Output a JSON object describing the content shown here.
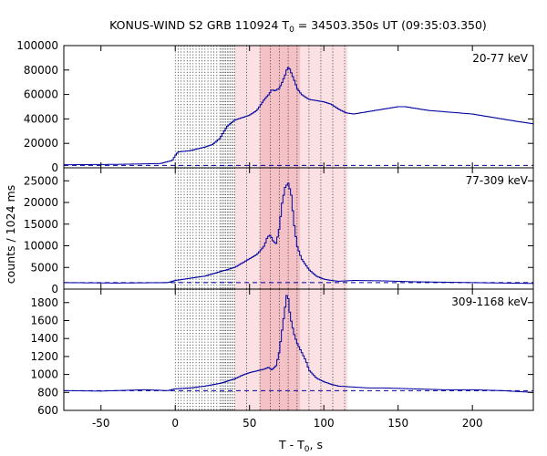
{
  "chart_data": {
    "type": "line",
    "title_prefix": "KONUS-WIND S2 GRB 110924 T",
    "title_sub": "0",
    "title_suffix": " = 34503.350s UT (09:35:03.350)",
    "xlabel_prefix": "T - T",
    "xlabel_sub": "0",
    "xlabel_suffix": ", s",
    "ylabel": "counts / 1024 ms",
    "xlim": [
      -75,
      241
    ],
    "x_ticks": [
      -50,
      0,
      50,
      100,
      150,
      200
    ],
    "grid": false,
    "shaded_intervals": [
      {
        "from": 40,
        "to": 116,
        "shade": "light"
      },
      {
        "from": 57,
        "to": 84,
        "shade": "dark"
      }
    ],
    "vertical_markers": [
      0,
      2,
      4,
      6,
      8,
      10,
      12,
      14,
      16,
      18,
      20,
      22,
      24,
      26,
      28,
      30,
      31,
      32,
      33,
      34,
      35,
      36,
      37,
      38,
      39,
      40,
      48,
      57,
      64,
      70,
      76,
      82,
      90,
      98,
      106,
      114
    ],
    "panels": [
      {
        "label": "20-77 keV",
        "ylim": [
          0,
          100000
        ],
        "y_ticks": [
          0,
          20000,
          40000,
          60000,
          80000,
          100000
        ],
        "background": 2000,
        "x": [
          -75,
          -40,
          -10,
          -2,
          0,
          2,
          10,
          20,
          25,
          30,
          35,
          40,
          45,
          50,
          55,
          60,
          63,
          65,
          67,
          70,
          72,
          74,
          75,
          76,
          77,
          78,
          80,
          82,
          85,
          90,
          95,
          100,
          105,
          110,
          115,
          120,
          130,
          140,
          150,
          155,
          160,
          170,
          180,
          190,
          200,
          210,
          220,
          230,
          241
        ],
        "values": [
          2500,
          2800,
          3500,
          6000,
          10000,
          13000,
          14000,
          17000,
          19000,
          24000,
          34000,
          39000,
          41000,
          43000,
          47000,
          56000,
          60000,
          64000,
          63000,
          65000,
          70000,
          76000,
          80000,
          82000,
          81000,
          78000,
          72000,
          65000,
          60000,
          56000,
          55000,
          54000,
          52000,
          48000,
          45000,
          44000,
          46000,
          48000,
          50000,
          50000,
          49000,
          47000,
          46000,
          45000,
          44000,
          42000,
          40000,
          38000,
          36000
        ]
      },
      {
        "label": "77-309 keV",
        "ylim": [
          0,
          28000
        ],
        "y_ticks": [
          0,
          5000,
          10000,
          15000,
          20000,
          25000
        ],
        "background": 1500,
        "x": [
          -75,
          -40,
          -5,
          0,
          10,
          20,
          30,
          40,
          45,
          50,
          55,
          60,
          62,
          64,
          66,
          68,
          70,
          72,
          74,
          76,
          78,
          80,
          82,
          85,
          90,
          95,
          100,
          105,
          110,
          120,
          140,
          160,
          180,
          200,
          220,
          241
        ],
        "values": [
          1500,
          1400,
          1500,
          2000,
          2500,
          3000,
          4000,
          5000,
          6000,
          7000,
          8000,
          10000,
          12000,
          12500,
          11000,
          10500,
          14000,
          20000,
          23500,
          24500,
          22000,
          15000,
          10000,
          7000,
          4500,
          3000,
          2300,
          2000,
          1800,
          2000,
          1900,
          1700,
          1600,
          1500,
          1400,
          1300
        ]
      },
      {
        "label": "309-1168 keV",
        "ylim": [
          600,
          1950
        ],
        "y_ticks": [
          600,
          800,
          1000,
          1200,
          1400,
          1600,
          1800
        ],
        "background": 820,
        "x": [
          -75,
          -50,
          -20,
          -5,
          0,
          10,
          20,
          30,
          40,
          45,
          50,
          55,
          60,
          63,
          65,
          68,
          70,
          72,
          74,
          75,
          76,
          77,
          78,
          80,
          82,
          85,
          88,
          90,
          95,
          100,
          105,
          110,
          120,
          130,
          140,
          160,
          180,
          200,
          220,
          241
        ],
        "values": [
          820,
          815,
          830,
          820,
          840,
          850,
          870,
          900,
          950,
          990,
          1020,
          1040,
          1060,
          1080,
          1050,
          1100,
          1250,
          1500,
          1750,
          1880,
          1850,
          1700,
          1600,
          1450,
          1350,
          1250,
          1150,
          1050,
          960,
          920,
          890,
          870,
          860,
          850,
          850,
          840,
          830,
          830,
          820,
          800
        ]
      }
    ]
  }
}
